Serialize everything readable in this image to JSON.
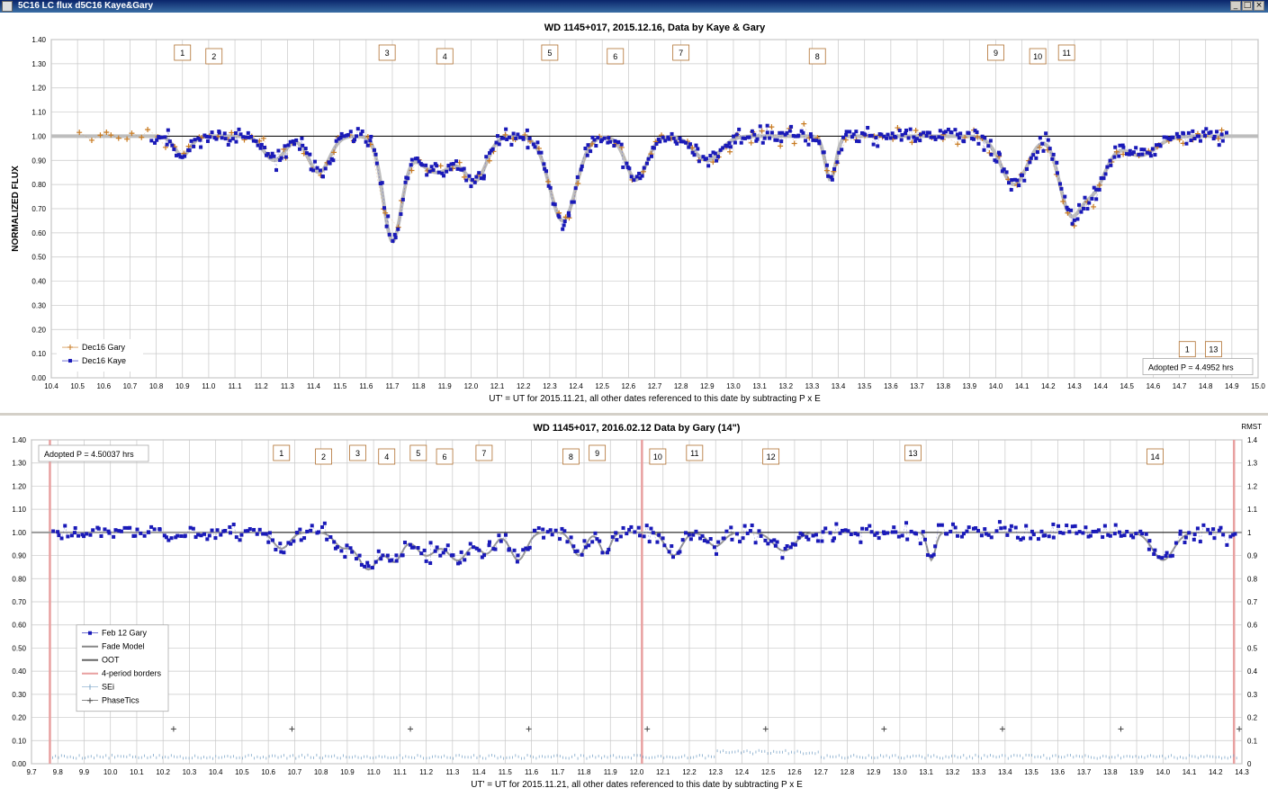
{
  "window": {
    "title": "5C16 LC flux d5C16 Kaye&Gary",
    "buttons": [
      "_",
      "□",
      "×"
    ]
  },
  "chart_data": [
    {
      "type": "scatter",
      "title": "WD 1145+017, 2015.12.16, Data by Kaye & Gary",
      "xlabel": "UT' = UT for 2015.11.21, all other dates referenced to this date by subtracting P x E",
      "ylabel": "NORMALIZED FLUX",
      "xlim": [
        10.4,
        15.0
      ],
      "ylim": [
        0.0,
        1.4
      ],
      "xticks": [
        "10.4",
        "10.5",
        "10.6",
        "10.7",
        "10.8",
        "10.9",
        "11.0",
        "11.1",
        "11.2",
        "11.3",
        "11.4",
        "11.5",
        "11.6",
        "11.7",
        "11.8",
        "11.9",
        "12.0",
        "12.1",
        "12.2",
        "12.3",
        "12.4",
        "12.5",
        "12.6",
        "12.7",
        "12.8",
        "12.9",
        "13.0",
        "13.1",
        "13.2",
        "13.3",
        "13.4",
        "13.5",
        "13.6",
        "13.7",
        "13.8",
        "13.9",
        "14.0",
        "14.1",
        "14.2",
        "14.3",
        "14.4",
        "14.5",
        "14.6",
        "14.7",
        "14.8",
        "14.9",
        "15.0"
      ],
      "yticks": [
        "0.00",
        "0.10",
        "0.20",
        "0.30",
        "0.40",
        "0.50",
        "0.60",
        "0.70",
        "0.80",
        "0.90",
        "1.00",
        "1.10",
        "1.20",
        "1.30",
        "1.40"
      ],
      "grid": true,
      "reference_line": 1.0,
      "legend": {
        "position": "bottom-left",
        "entries": [
          "Dec16 Gary",
          "Dec16 Kaye"
        ]
      },
      "annotation": "Adopted P = 4.4952 hrs",
      "markers": [
        {
          "label": "1",
          "x": 10.9
        },
        {
          "label": "2",
          "x": 11.02
        },
        {
          "label": "3",
          "x": 11.68
        },
        {
          "label": "4",
          "x": 11.9
        },
        {
          "label": "5",
          "x": 12.3
        },
        {
          "label": "6",
          "x": 12.55
        },
        {
          "label": "7",
          "x": 12.8
        },
        {
          "label": "8",
          "x": 13.32
        },
        {
          "label": "9",
          "x": 14.0
        },
        {
          "label": "10",
          "x": 14.16
        },
        {
          "label": "11",
          "x": 14.27
        },
        {
          "label": "1",
          "x": 14.73
        },
        {
          "label": "13",
          "x": 14.83
        }
      ],
      "model": {
        "baseline": 1.0,
        "dips": [
          {
            "center": 10.9,
            "depth": 0.08,
            "width": 0.03
          },
          {
            "center": 11.25,
            "depth": 0.1,
            "width": 0.04
          },
          {
            "center": 11.42,
            "depth": 0.15,
            "width": 0.04
          },
          {
            "center": 11.7,
            "depth": 0.42,
            "width": 0.035
          },
          {
            "center": 11.87,
            "depth": 0.15,
            "width": 0.08
          },
          {
            "center": 12.02,
            "depth": 0.16,
            "width": 0.04
          },
          {
            "center": 12.35,
            "depth": 0.35,
            "width": 0.05
          },
          {
            "center": 12.63,
            "depth": 0.18,
            "width": 0.04
          },
          {
            "center": 12.9,
            "depth": 0.1,
            "width": 0.05
          },
          {
            "center": 13.37,
            "depth": 0.18,
            "width": 0.02
          },
          {
            "center": 14.07,
            "depth": 0.2,
            "width": 0.05
          },
          {
            "center": 14.28,
            "depth": 0.28,
            "width": 0.04
          },
          {
            "center": 14.37,
            "depth": 0.22,
            "width": 0.05
          },
          {
            "center": 14.55,
            "depth": 0.08,
            "width": 0.06
          }
        ]
      },
      "series": [
        {
          "name": "Dec16 Gary",
          "color": "#c87a20",
          "marker": "plus",
          "x_range": [
            10.5,
            14.88
          ],
          "count": 150,
          "seed": 7
        },
        {
          "name": "Dec16 Kaye",
          "color": "#1a1ab8",
          "marker": "square",
          "x_range": [
            10.78,
            14.88
          ],
          "count": 520,
          "seed": 11
        }
      ]
    },
    {
      "type": "scatter",
      "title": "WD 1145+017, 2016.02.12 Data by Gary (14\")",
      "xlabel": "UT' = UT for 2015.11.21, all other dates referenced to this date by subtracting P x E",
      "ylabel_right": "RMST",
      "xlim": [
        9.7,
        14.3
      ],
      "ylim": [
        0.0,
        1.4
      ],
      "xticks": [
        "9.7",
        "9.8",
        "9.9",
        "10.0",
        "10.1",
        "10.2",
        "10.3",
        "10.4",
        "10.5",
        "10.6",
        "10.7",
        "10.8",
        "10.9",
        "11.0",
        "11.1",
        "11.2",
        "11.3",
        "11.4",
        "11.5",
        "11.6",
        "11.7",
        "11.8",
        "11.9",
        "12.0",
        "12.1",
        "12.2",
        "12.3",
        "12.4",
        "12.5",
        "12.6",
        "12.7",
        "12.8",
        "12.9",
        "13.0",
        "13.1",
        "13.2",
        "13.3",
        "13.4",
        "13.5",
        "13.6",
        "13.7",
        "13.8",
        "13.9",
        "14.0",
        "14.1",
        "14.2",
        "14.3"
      ],
      "yticks": [
        "0.00",
        "0.10",
        "0.20",
        "0.30",
        "0.40",
        "0.50",
        "0.60",
        "0.70",
        "0.80",
        "0.90",
        "1.00",
        "1.10",
        "1.20",
        "1.30",
        "1.40"
      ],
      "yticks_right": [
        "0",
        "0.1",
        "0.2",
        "0.3",
        "0.4",
        "0.5",
        "0.6",
        "0.7",
        "0.8",
        "0.9",
        "1",
        "1.1",
        "1.2",
        "1.3",
        "1.4"
      ],
      "grid": true,
      "reference_line": 1.0,
      "legend": {
        "position": "center-left",
        "entries": [
          "Feb 12 Gary",
          "Fade Model",
          "OOT",
          "4-period borders",
          "SEi",
          "PhaseTics"
        ]
      },
      "annotation": "Adopted P = 4.50037 hrs",
      "period_borders": [
        9.77,
        12.02,
        14.27
      ],
      "phase_ticks": [
        10.24,
        10.69,
        11.14,
        11.59,
        12.04,
        12.49,
        12.94,
        13.39,
        13.84,
        14.29
      ],
      "phase_tick_y": 0.15,
      "markers": [
        {
          "label": "1",
          "x": 10.65
        },
        {
          "label": "2",
          "x": 10.81
        },
        {
          "label": "3",
          "x": 10.94
        },
        {
          "label": "4",
          "x": 11.05
        },
        {
          "label": "5",
          "x": 11.17
        },
        {
          "label": "6",
          "x": 11.27
        },
        {
          "label": "7",
          "x": 11.42
        },
        {
          "label": "8",
          "x": 11.75
        },
        {
          "label": "9",
          "x": 11.85
        },
        {
          "label": "10",
          "x": 12.08
        },
        {
          "label": "11",
          "x": 12.22
        },
        {
          "label": "12",
          "x": 12.51
        },
        {
          "label": "13",
          "x": 13.05
        },
        {
          "label": "14",
          "x": 13.97
        }
      ],
      "model": {
        "baseline": 1.0,
        "dips": [
          {
            "center": 10.65,
            "depth": 0.07,
            "width": 0.03
          },
          {
            "center": 10.88,
            "depth": 0.06,
            "width": 0.03
          },
          {
            "center": 10.98,
            "depth": 0.16,
            "width": 0.04
          },
          {
            "center": 11.08,
            "depth": 0.12,
            "width": 0.03
          },
          {
            "center": 11.2,
            "depth": 0.1,
            "width": 0.04
          },
          {
            "center": 11.32,
            "depth": 0.12,
            "width": 0.04
          },
          {
            "center": 11.43,
            "depth": 0.09,
            "width": 0.03
          },
          {
            "center": 11.55,
            "depth": 0.12,
            "width": 0.03
          },
          {
            "center": 11.78,
            "depth": 0.1,
            "width": 0.025
          },
          {
            "center": 11.88,
            "depth": 0.09,
            "width": 0.02
          },
          {
            "center": 12.14,
            "depth": 0.1,
            "width": 0.03
          },
          {
            "center": 12.3,
            "depth": 0.06,
            "width": 0.03
          },
          {
            "center": 12.56,
            "depth": 0.08,
            "width": 0.04
          },
          {
            "center": 13.12,
            "depth": 0.12,
            "width": 0.015
          },
          {
            "center": 14.0,
            "depth": 0.12,
            "width": 0.04
          }
        ]
      },
      "series": [
        {
          "name": "Feb 12 Gary",
          "color": "#1a1ab8",
          "marker": "square",
          "x_range": [
            9.78,
            14.28
          ],
          "count": 420,
          "seed": 23
        },
        {
          "name": "SEi",
          "color": "#7fa7c9",
          "marker": "tick",
          "x_range": [
            9.78,
            14.28
          ],
          "level": 0.03
        }
      ]
    }
  ]
}
